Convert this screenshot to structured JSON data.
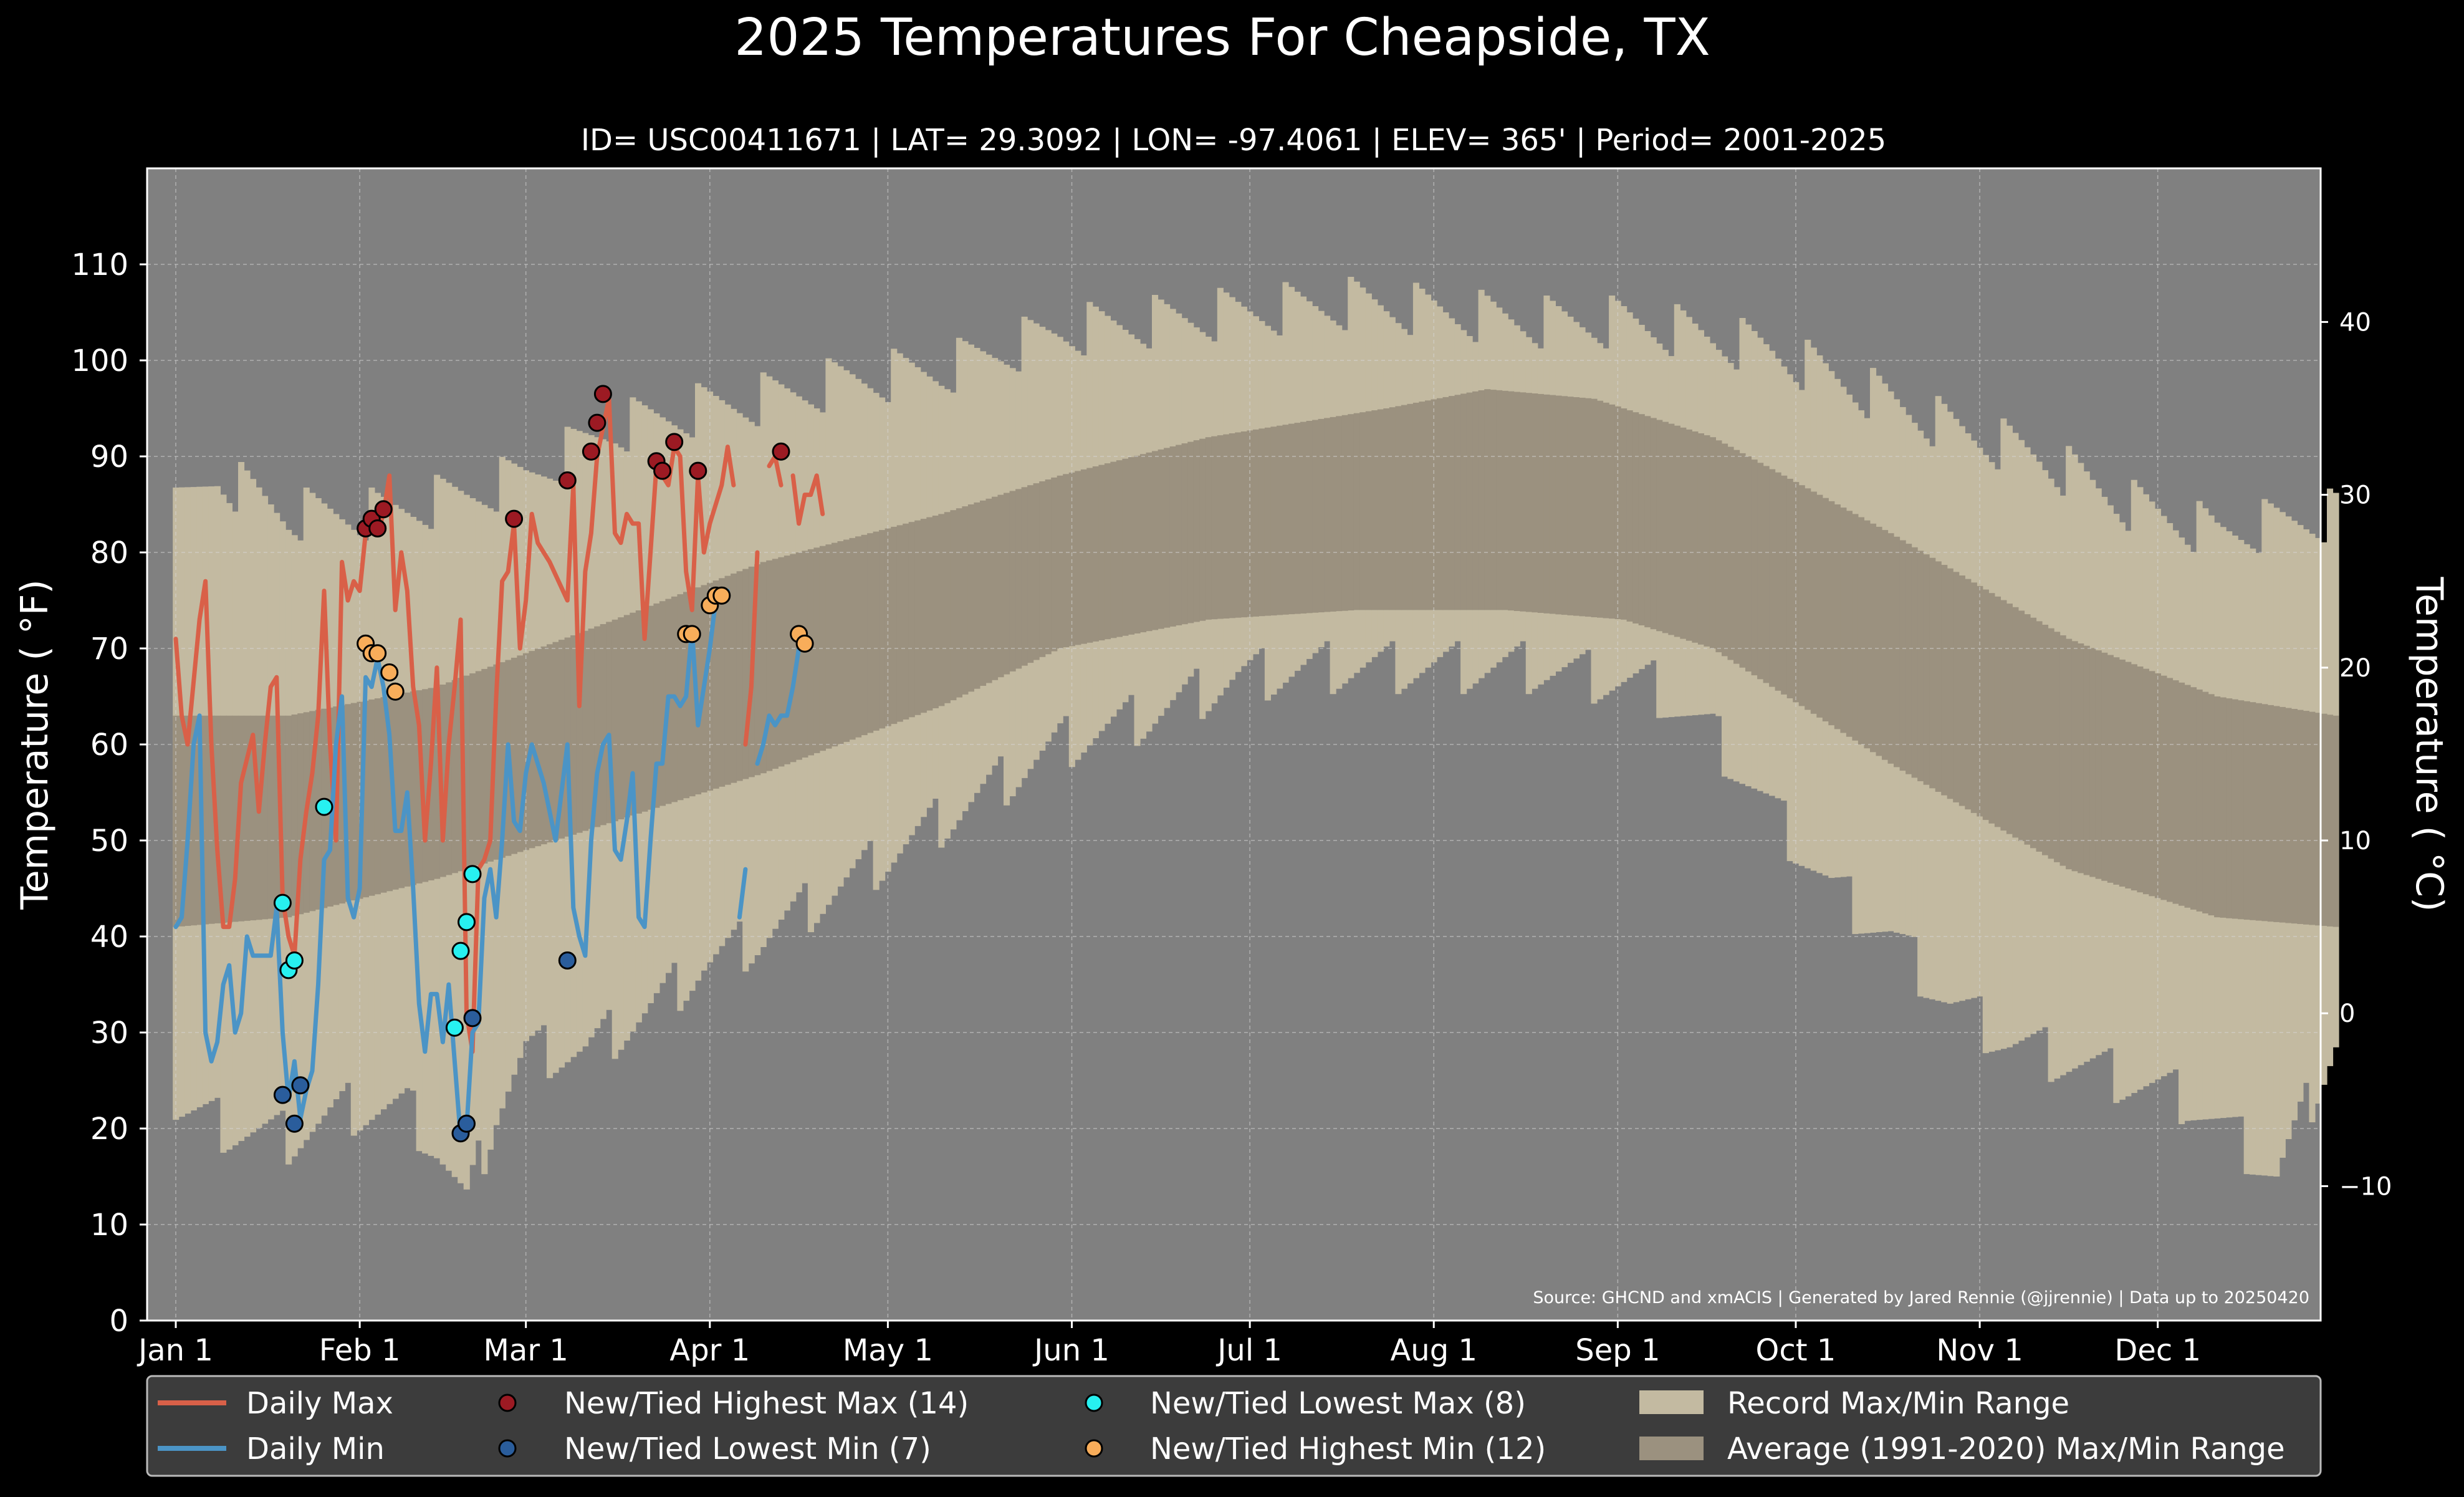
{
  "title": "2025 Temperatures For Cheapside, TX",
  "subtitle": "ID= USC00411671 | LAT= 29.3092 | LON= -97.4061 | ELEV= 365' | Period= 2001-2025",
  "source": "Source: GHCND and xmACIS | Generated by Jared Rennie (@jjrennie) | Data up to 20250420",
  "colors": {
    "background": "#000000",
    "plot_bg": "#808080",
    "record_band": "#c3baa1",
    "normal_band": "#9b917f",
    "daily_max": "#d96048",
    "daily_min": "#4b94c6",
    "high_max": "#9c1a23",
    "low_min": "#2a5d9c",
    "low_max": "#27f0f0",
    "high_min": "#f8ad5a",
    "text": "#ffffff",
    "legend_bg": "#3c3c3c"
  },
  "chart_data": {
    "type": "line",
    "title": "2025 Temperatures For Cheapside, TX",
    "ylabel_left": "Temperature ( °F)",
    "ylabel_right": "Temperature ( °C)",
    "ylim_f": [
      0,
      120
    ],
    "y_ticks_f": [
      0,
      10,
      20,
      30,
      40,
      50,
      60,
      70,
      80,
      90,
      100,
      110
    ],
    "y_ticks_c": [
      -10,
      0,
      10,
      20,
      30,
      40
    ],
    "x_ticks": [
      {
        "day": 1,
        "label": "Jan 1"
      },
      {
        "day": 32,
        "label": "Feb 1"
      },
      {
        "day": 60,
        "label": "Mar 1"
      },
      {
        "day": 91,
        "label": "Apr 1"
      },
      {
        "day": 121,
        "label": "May 1"
      },
      {
        "day": 152,
        "label": "Jun 1"
      },
      {
        "day": 182,
        "label": "Jul 1"
      },
      {
        "day": 213,
        "label": "Aug 1"
      },
      {
        "day": 244,
        "label": "Sep 1"
      },
      {
        "day": 274,
        "label": "Oct 1"
      },
      {
        "day": 305,
        "label": "Nov 1"
      },
      {
        "day": 335,
        "label": "Dec 1"
      }
    ],
    "grid": true,
    "normal_max_knots": [
      [
        1,
        63
      ],
      [
        20,
        63
      ],
      [
        45,
        66
      ],
      [
        75,
        73
      ],
      [
        100,
        79
      ],
      [
        130,
        84
      ],
      [
        150,
        88
      ],
      [
        175,
        92
      ],
      [
        205,
        95
      ],
      [
        222,
        97
      ],
      [
        240,
        96
      ],
      [
        260,
        92
      ],
      [
        290,
        82
      ],
      [
        320,
        71
      ],
      [
        345,
        65
      ],
      [
        365,
        63
      ]
    ],
    "normal_min_knots": [
      [
        1,
        41
      ],
      [
        20,
        42
      ],
      [
        45,
        46
      ],
      [
        75,
        52
      ],
      [
        100,
        57
      ],
      [
        130,
        64
      ],
      [
        150,
        70
      ],
      [
        175,
        73
      ],
      [
        200,
        74
      ],
      [
        225,
        74
      ],
      [
        245,
        73
      ],
      [
        260,
        70
      ],
      [
        290,
        58
      ],
      [
        320,
        47
      ],
      [
        345,
        42
      ],
      [
        365,
        41
      ]
    ],
    "record_max_knots": [
      [
        1,
        84
      ],
      [
        8,
        88
      ],
      [
        20,
        84
      ],
      [
        35,
        84
      ],
      [
        50,
        86
      ],
      [
        60,
        88
      ],
      [
        75,
        93
      ],
      [
        90,
        95
      ],
      [
        100,
        96
      ],
      [
        115,
        98
      ],
      [
        130,
        99
      ],
      [
        150,
        103
      ],
      [
        165,
        104
      ],
      [
        180,
        105
      ],
      [
        200,
        106
      ],
      [
        215,
        105
      ],
      [
        230,
        104
      ],
      [
        245,
        104
      ],
      [
        255,
        103
      ],
      [
        270,
        101
      ],
      [
        285,
        97
      ],
      [
        300,
        93
      ],
      [
        315,
        90
      ],
      [
        330,
        85
      ],
      [
        345,
        82
      ],
      [
        365,
        84
      ]
    ],
    "record_min_knots": [
      [
        1,
        22
      ],
      [
        10,
        20
      ],
      [
        20,
        19
      ],
      [
        30,
        22
      ],
      [
        40,
        22
      ],
      [
        45,
        18
      ],
      [
        50,
        12
      ],
      [
        55,
        22
      ],
      [
        60,
        28
      ],
      [
        70,
        28
      ],
      [
        80,
        32
      ],
      [
        90,
        37
      ],
      [
        100,
        40
      ],
      [
        110,
        44
      ],
      [
        120,
        48
      ],
      [
        135,
        54
      ],
      [
        150,
        60
      ],
      [
        165,
        63
      ],
      [
        180,
        67
      ],
      [
        195,
        68
      ],
      [
        210,
        68
      ],
      [
        230,
        68
      ],
      [
        250,
        66
      ],
      [
        260,
        61
      ],
      [
        270,
        53
      ],
      [
        280,
        45
      ],
      [
        290,
        40
      ],
      [
        300,
        33
      ],
      [
        310,
        29
      ],
      [
        320,
        27
      ],
      [
        330,
        25
      ],
      [
        340,
        23
      ],
      [
        350,
        18
      ],
      [
        355,
        15
      ],
      [
        365,
        29
      ]
    ],
    "daily_max": [
      [
        1,
        71
      ],
      [
        2,
        63
      ],
      [
        3,
        60
      ],
      [
        5,
        73
      ],
      [
        6,
        77
      ],
      [
        7,
        60
      ],
      [
        8,
        49
      ],
      [
        9,
        41
      ],
      [
        10,
        41
      ],
      [
        11,
        46
      ],
      [
        12,
        56
      ],
      [
        14,
        61
      ],
      [
        15,
        53
      ],
      [
        16,
        60
      ],
      [
        17,
        66
      ],
      [
        18,
        67
      ],
      [
        19,
        44
      ],
      [
        20,
        40
      ],
      [
        21,
        38
      ],
      [
        22,
        48
      ],
      [
        23,
        53
      ],
      [
        24,
        57
      ],
      [
        25,
        63
      ],
      [
        26,
        76
      ],
      [
        27,
        60
      ],
      [
        28,
        50
      ],
      [
        29,
        79
      ],
      [
        30,
        75
      ],
      [
        31,
        77
      ],
      [
        32,
        76
      ],
      [
        33,
        82
      ],
      [
        34,
        83
      ],
      [
        35,
        82
      ],
      [
        36,
        84
      ],
      [
        37,
        88
      ],
      [
        38,
        74
      ],
      [
        39,
        80
      ],
      [
        40,
        76
      ],
      [
        41,
        66
      ],
      [
        42,
        62
      ],
      [
        43,
        50
      ],
      [
        44,
        58
      ],
      [
        45,
        68
      ],
      [
        46,
        50
      ],
      [
        47,
        60
      ],
      [
        48,
        66
      ],
      [
        49,
        73
      ],
      [
        50,
        32
      ],
      [
        51,
        28
      ],
      [
        52,
        47
      ],
      [
        53,
        48
      ],
      [
        54,
        50
      ],
      [
        55,
        65
      ],
      [
        56,
        77
      ],
      [
        57,
        78
      ],
      [
        58,
        83
      ],
      [
        59,
        70
      ],
      [
        60,
        75
      ],
      [
        61,
        84
      ],
      [
        62,
        81
      ],
      [
        63,
        80
      ],
      [
        64,
        79
      ],
      [
        67,
        75
      ],
      [
        68,
        87
      ],
      [
        69,
        64
      ],
      [
        70,
        78
      ],
      [
        71,
        82
      ],
      [
        72,
        90
      ],
      [
        73,
        93
      ],
      [
        74,
        96
      ],
      [
        75,
        82
      ],
      [
        76,
        81
      ],
      [
        77,
        84
      ],
      [
        78,
        83
      ],
      [
        79,
        83
      ],
      [
        80,
        71
      ],
      [
        81,
        80
      ],
      [
        82,
        89
      ],
      [
        83,
        88
      ],
      [
        84,
        87
      ],
      [
        85,
        91
      ],
      [
        86,
        90
      ],
      [
        87,
        78
      ],
      [
        88,
        74
      ],
      [
        89,
        88
      ],
      [
        90,
        80
      ],
      [
        91,
        83
      ],
      [
        92,
        85
      ],
      [
        93,
        87
      ],
      [
        94,
        91
      ],
      [
        95,
        87
      ],
      [
        96,
        null
      ],
      [
        97,
        60
      ],
      [
        98,
        66
      ],
      [
        99,
        80
      ],
      [
        100,
        null
      ],
      [
        101,
        89
      ],
      [
        102,
        90
      ],
      [
        103,
        87
      ],
      [
        104,
        null
      ],
      [
        105,
        88
      ],
      [
        106,
        83
      ],
      [
        107,
        86
      ],
      [
        108,
        86
      ],
      [
        109,
        88
      ],
      [
        110,
        84
      ]
    ],
    "daily_min": [
      [
        1,
        41
      ],
      [
        2,
        42
      ],
      [
        3,
        50
      ],
      [
        4,
        60
      ],
      [
        5,
        63
      ],
      [
        6,
        30
      ],
      [
        7,
        27
      ],
      [
        8,
        29
      ],
      [
        9,
        35
      ],
      [
        10,
        37
      ],
      [
        11,
        30
      ],
      [
        12,
        32
      ],
      [
        13,
        40
      ],
      [
        14,
        38
      ],
      [
        15,
        38
      ],
      [
        16,
        38
      ],
      [
        17,
        38
      ],
      [
        18,
        43
      ],
      [
        19,
        30
      ],
      [
        20,
        23
      ],
      [
        21,
        27
      ],
      [
        22,
        21
      ],
      [
        23,
        24
      ],
      [
        24,
        26
      ],
      [
        25,
        35
      ],
      [
        26,
        48
      ],
      [
        27,
        49
      ],
      [
        28,
        60
      ],
      [
        29,
        65
      ],
      [
        30,
        44
      ],
      [
        31,
        42
      ],
      [
        32,
        45
      ],
      [
        33,
        67
      ],
      [
        34,
        66
      ],
      [
        35,
        69
      ],
      [
        36,
        66
      ],
      [
        37,
        61
      ],
      [
        38,
        51
      ],
      [
        39,
        51
      ],
      [
        40,
        55
      ],
      [
        41,
        45
      ],
      [
        42,
        33
      ],
      [
        43,
        28
      ],
      [
        44,
        34
      ],
      [
        45,
        34
      ],
      [
        46,
        29
      ],
      [
        47,
        35
      ],
      [
        48,
        27
      ],
      [
        49,
        19
      ],
      [
        50,
        20
      ],
      [
        51,
        30
      ],
      [
        52,
        31
      ],
      [
        53,
        44
      ],
      [
        54,
        47
      ],
      [
        55,
        42
      ],
      [
        56,
        50
      ],
      [
        57,
        60
      ],
      [
        58,
        52
      ],
      [
        59,
        51
      ],
      [
        60,
        57
      ],
      [
        61,
        60
      ],
      [
        62,
        58
      ],
      [
        63,
        56
      ],
      [
        64,
        53
      ],
      [
        65,
        50
      ],
      [
        66,
        55
      ],
      [
        67,
        60
      ],
      [
        68,
        43
      ],
      [
        69,
        40
      ],
      [
        70,
        38
      ],
      [
        71,
        50
      ],
      [
        72,
        57
      ],
      [
        73,
        60
      ],
      [
        74,
        61
      ],
      [
        75,
        49
      ],
      [
        76,
        48
      ],
      [
        77,
        52
      ],
      [
        78,
        57
      ],
      [
        79,
        42
      ],
      [
        80,
        41
      ],
      [
        81,
        50
      ],
      [
        82,
        58
      ],
      [
        83,
        58
      ],
      [
        84,
        65
      ],
      [
        85,
        65
      ],
      [
        86,
        64
      ],
      [
        87,
        65
      ],
      [
        88,
        72
      ],
      [
        89,
        62
      ],
      [
        90,
        66
      ],
      [
        91,
        70
      ],
      [
        92,
        75
      ],
      [
        93,
        76
      ],
      [
        94,
        76
      ],
      [
        95,
        null
      ],
      [
        96,
        42
      ],
      [
        97,
        47
      ],
      [
        98,
        null
      ],
      [
        99,
        58
      ],
      [
        100,
        60
      ],
      [
        101,
        63
      ],
      [
        102,
        62
      ],
      [
        103,
        63
      ],
      [
        104,
        63
      ],
      [
        105,
        66
      ],
      [
        106,
        70
      ]
    ],
    "new_tied_highest_max": [
      [
        33,
        82.5
      ],
      [
        34,
        83.5
      ],
      [
        35,
        82.5
      ],
      [
        36,
        84.5
      ],
      [
        58,
        83.5
      ],
      [
        67,
        87.5
      ],
      [
        71,
        90.5
      ],
      [
        72,
        93.5
      ],
      [
        73,
        96.5
      ],
      [
        82,
        89.5
      ],
      [
        83,
        88.5
      ],
      [
        85,
        91.5
      ],
      [
        89,
        88.5
      ],
      [
        103,
        90.5
      ]
    ],
    "new_tied_lowest_min": [
      [
        19,
        23.5
      ],
      [
        21,
        20.5
      ],
      [
        22,
        24.5
      ],
      [
        49,
        19.5
      ],
      [
        50,
        20.5
      ],
      [
        51,
        31.5
      ],
      [
        67,
        37.5
      ]
    ],
    "new_tied_lowest_max": [
      [
        19,
        43.5
      ],
      [
        20,
        36.5
      ],
      [
        21,
        37.5
      ],
      [
        26,
        53.5
      ],
      [
        48,
        30.5
      ],
      [
        49,
        38.5
      ],
      [
        50,
        41.5
      ],
      [
        51,
        46.5
      ]
    ],
    "new_tied_highest_min": [
      [
        33,
        70.5
      ],
      [
        34,
        69.5
      ],
      [
        35,
        69.5
      ],
      [
        37,
        67.5
      ],
      [
        38,
        65.5
      ],
      [
        87,
        71.5
      ],
      [
        88,
        71.5
      ],
      [
        91,
        74.5
      ],
      [
        92,
        75.5
      ],
      [
        93,
        75.5
      ],
      [
        106,
        71.5
      ],
      [
        107,
        70.5
      ]
    ]
  },
  "legend": {
    "col1": [
      "Daily Max",
      "Daily Min"
    ],
    "col2": [
      "New/Tied Highest Max (14)",
      "New/Tied Lowest Min (7)"
    ],
    "col3": [
      "New/Tied Lowest Max (8)",
      "New/Tied Highest Min (12)"
    ],
    "col4": [
      "Record Max/Min Range",
      "Average (1991-2020) Max/Min Range"
    ]
  }
}
